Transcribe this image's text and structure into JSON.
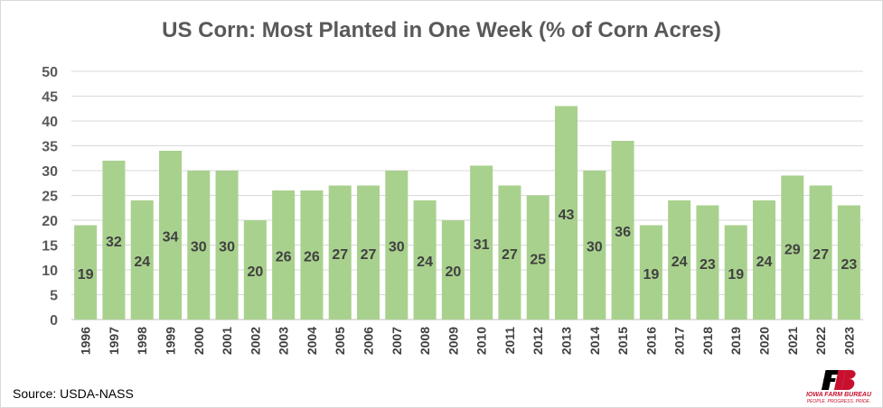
{
  "chart_data": {
    "type": "bar",
    "title": "US Corn: Most Planted in One Week (% of Corn Acres)",
    "categories": [
      "1996",
      "1997",
      "1998",
      "1999",
      "2000",
      "2001",
      "2002",
      "2003",
      "2004",
      "2005",
      "2006",
      "2007",
      "2008",
      "2009",
      "2010",
      "2011",
      "2012",
      "2013",
      "2014",
      "2015",
      "2016",
      "2017",
      "2018",
      "2019",
      "2020",
      "2021",
      "2022",
      "2023"
    ],
    "values": [
      19,
      32,
      24,
      34,
      30,
      30,
      20,
      26,
      26,
      27,
      27,
      30,
      24,
      20,
      31,
      27,
      25,
      43,
      30,
      36,
      19,
      24,
      23,
      19,
      24,
      29,
      27,
      23
    ],
    "yticks": [
      "0",
      "5",
      "10",
      "15",
      "20",
      "25",
      "30",
      "35",
      "40",
      "45",
      "50"
    ],
    "ylim": [
      0,
      50
    ],
    "grid": true,
    "bar_color": "#a9d18e",
    "label_color": "#404040"
  },
  "source": "Source: USDA-NASS",
  "logo": {
    "name": "IOWA FARM BUREAU",
    "tagline": "PEOPLE. PROGRESS. PRIDE."
  }
}
